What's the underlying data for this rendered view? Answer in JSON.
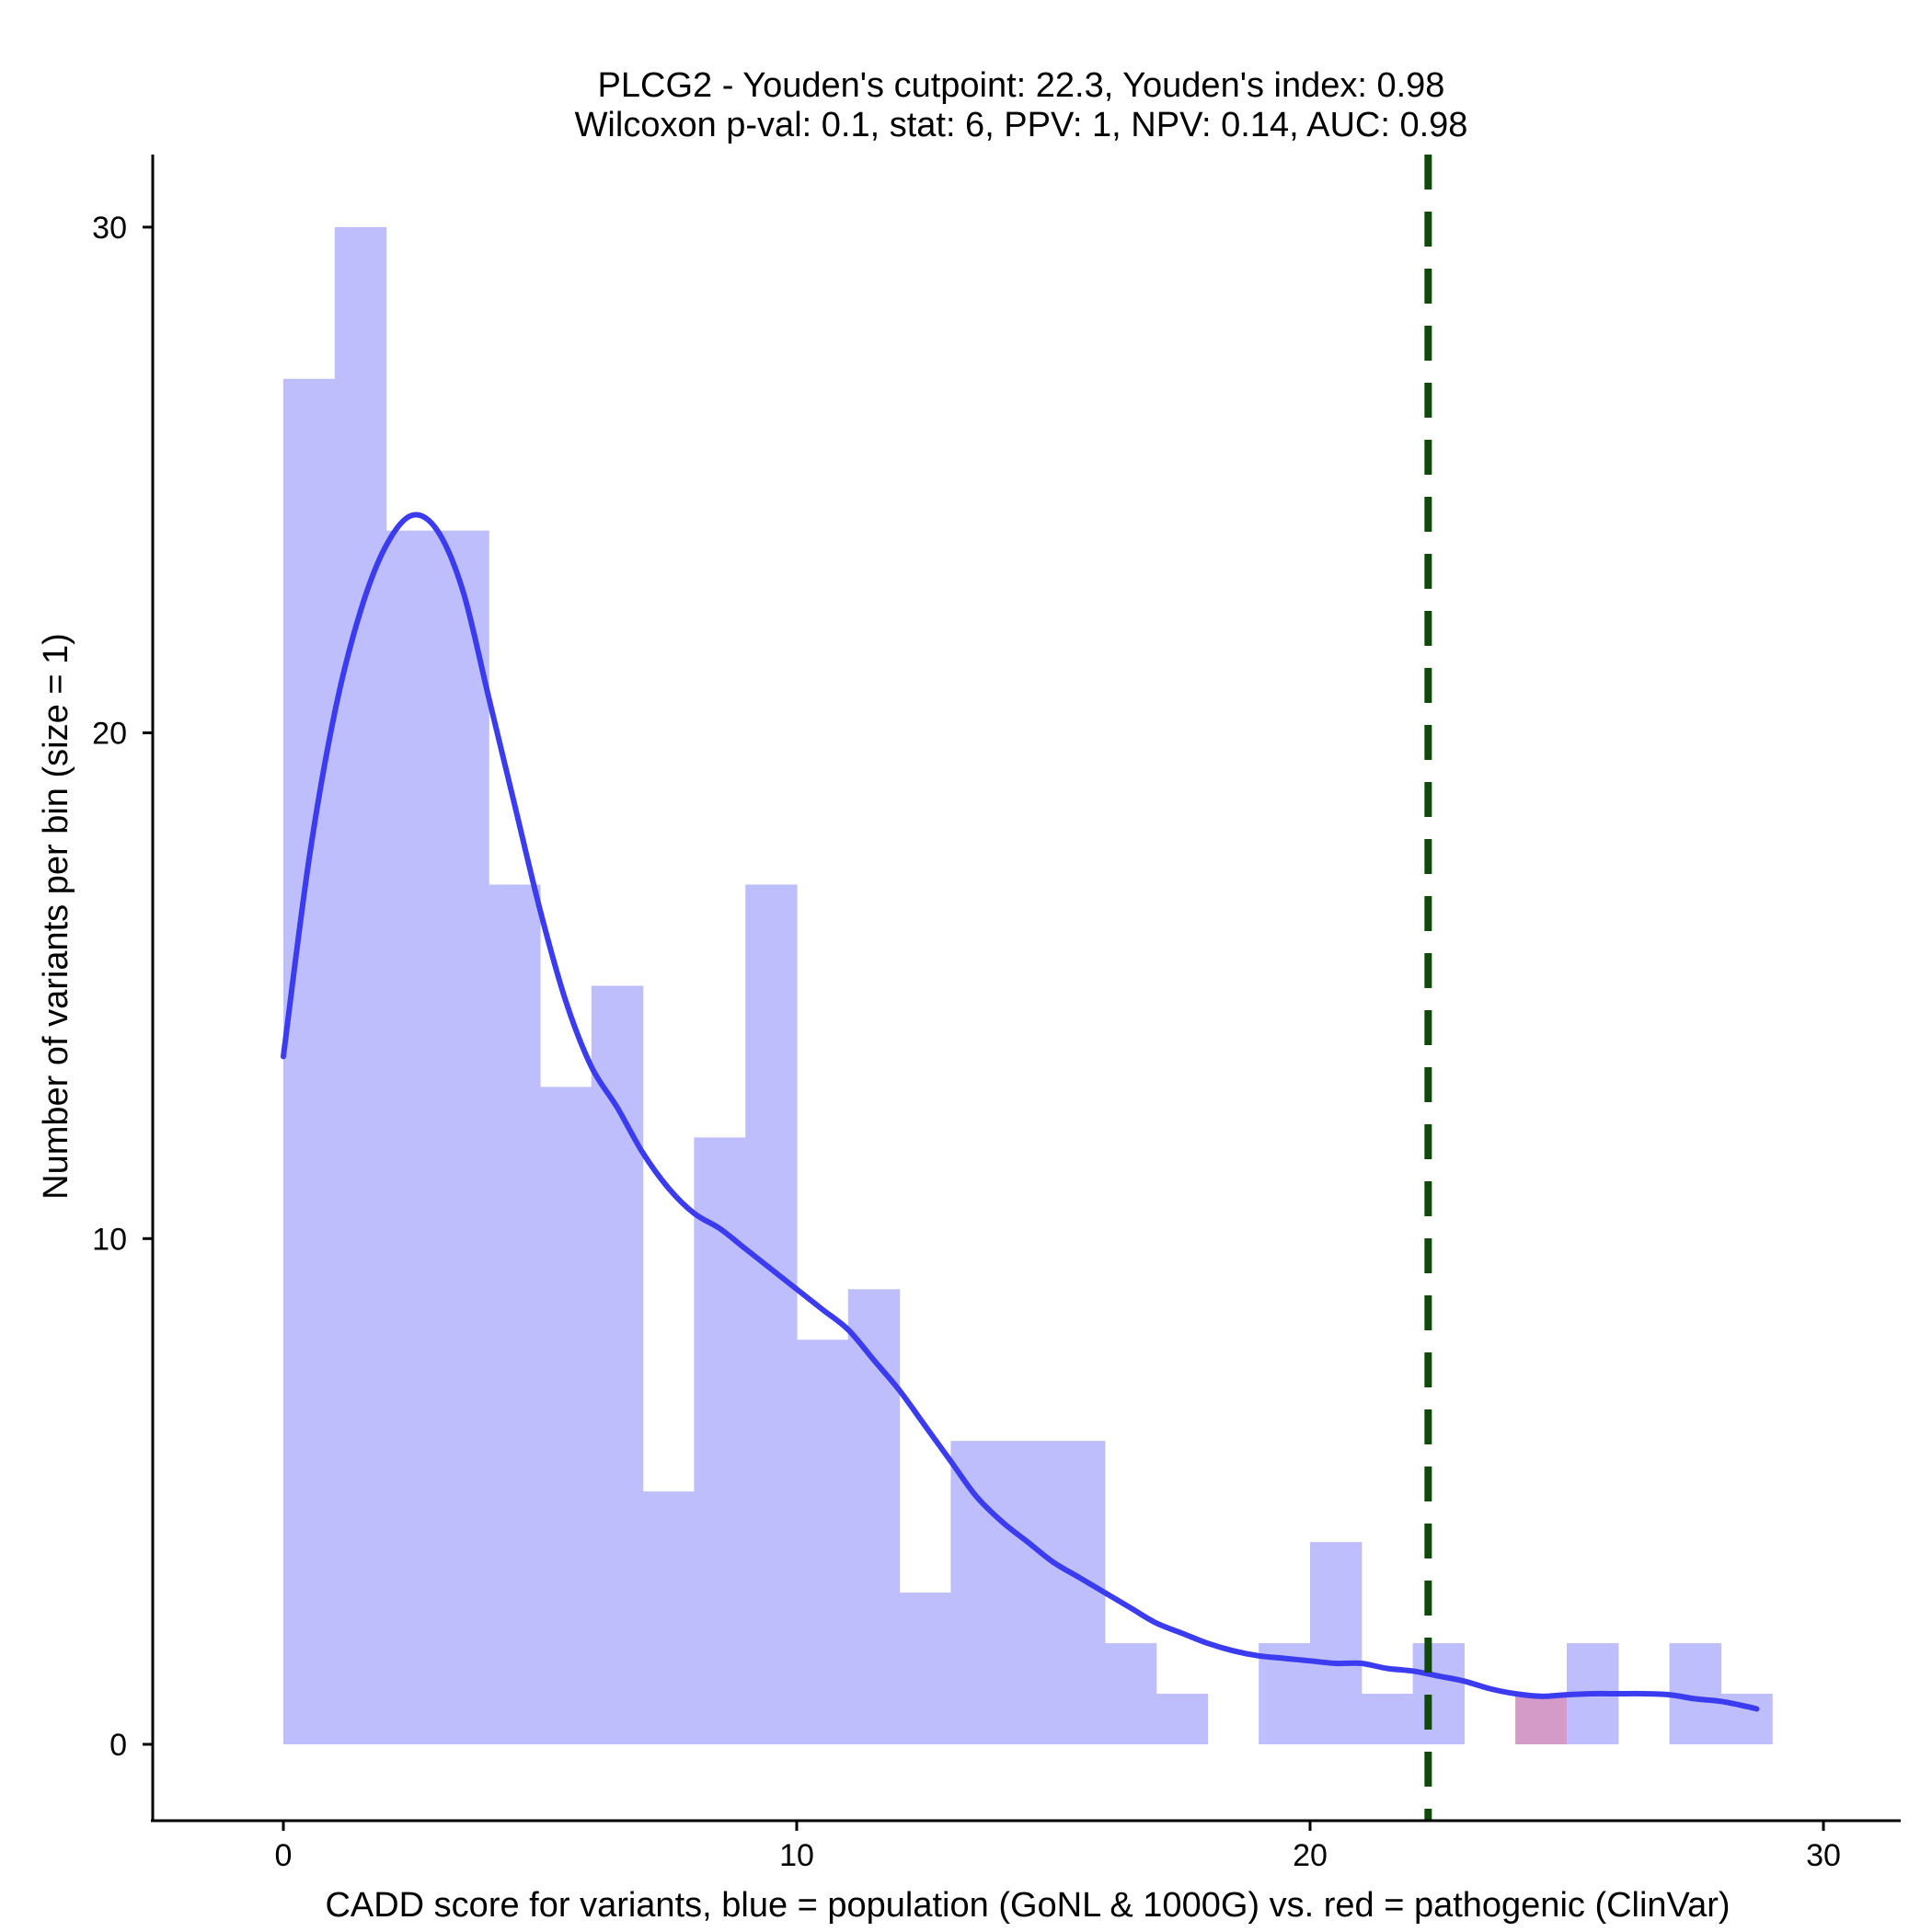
{
  "chart_data": {
    "type": "bar",
    "title": "PLCG2 - Youden's cutpoint: 22.3, Youden's index: 0.98",
    "subtitle": "Wilcoxon p-val: 0.1, stat: 6, PPV: 1, NPV: 0.14, AUC: 0.98",
    "xlabel": "CADD score for variants, blue = population (GoNL & 1000G) vs. red = pathogenic (ClinVar)",
    "ylabel": "Number of variants per bin (size = 1)",
    "xlim": [
      -2.5,
      31.5
    ],
    "ylim": [
      -1.5,
      31.5
    ],
    "xticks": [
      0,
      10,
      20,
      30
    ],
    "yticks": [
      0,
      10,
      20,
      30
    ],
    "grid": false,
    "cutpoint": 22.3,
    "colors": {
      "population": "#bebefc",
      "pathogenic": "#d49ac8",
      "density": "#3b3bef",
      "cutpoint": "#0f4a0a"
    },
    "series": [
      {
        "name": "population",
        "bins": [
          {
            "x0": 0,
            "x1": 1,
            "count": 27
          },
          {
            "x0": 1,
            "x1": 2,
            "count": 30
          },
          {
            "x0": 2,
            "x1": 3,
            "count": 24
          },
          {
            "x0": 3,
            "x1": 4,
            "count": 24
          },
          {
            "x0": 4,
            "x1": 5,
            "count": 17
          },
          {
            "x0": 5,
            "x1": 6,
            "count": 13
          },
          {
            "x0": 6,
            "x1": 7,
            "count": 15
          },
          {
            "x0": 7,
            "x1": 8,
            "count": 5
          },
          {
            "x0": 8,
            "x1": 9,
            "count": 12
          },
          {
            "x0": 9,
            "x1": 10,
            "count": 17
          },
          {
            "x0": 10,
            "x1": 11,
            "count": 8
          },
          {
            "x0": 11,
            "x1": 12,
            "count": 9
          },
          {
            "x0": 12,
            "x1": 13,
            "count": 3
          },
          {
            "x0": 13,
            "x1": 14,
            "count": 6
          },
          {
            "x0": 14,
            "x1": 15,
            "count": 6
          },
          {
            "x0": 15,
            "x1": 16,
            "count": 6
          },
          {
            "x0": 16,
            "x1": 17,
            "count": 2
          },
          {
            "x0": 17,
            "x1": 18,
            "count": 1
          },
          {
            "x0": 18,
            "x1": 19,
            "count": 0
          },
          {
            "x0": 19,
            "x1": 20,
            "count": 2
          },
          {
            "x0": 20,
            "x1": 21,
            "count": 4
          },
          {
            "x0": 21,
            "x1": 22,
            "count": 1
          },
          {
            "x0": 22,
            "x1": 23,
            "count": 2
          },
          {
            "x0": 23,
            "x1": 24,
            "count": 0
          },
          {
            "x0": 24,
            "x1": 25,
            "count": 1
          },
          {
            "x0": 25,
            "x1": 26,
            "count": 2
          },
          {
            "x0": 26,
            "x1": 27,
            "count": 0
          },
          {
            "x0": 27,
            "x1": 28,
            "count": 2
          },
          {
            "x0": 28,
            "x1": 29,
            "count": 1
          }
        ]
      },
      {
        "name": "pathogenic",
        "bins": [
          {
            "x0": 24,
            "x1": 25,
            "count": 1
          }
        ]
      }
    ],
    "density_curve": [
      [
        0,
        13.6
      ],
      [
        0.5,
        17.5
      ],
      [
        1,
        20.4
      ],
      [
        1.5,
        22.4
      ],
      [
        2,
        23.7
      ],
      [
        2.5,
        24.3
      ],
      [
        3,
        24.0
      ],
      [
        3.5,
        22.8
      ],
      [
        4,
        20.7
      ],
      [
        4.5,
        18.6
      ],
      [
        5,
        16.5
      ],
      [
        5.5,
        14.7
      ],
      [
        6,
        13.4
      ],
      [
        6.5,
        12.6
      ],
      [
        7,
        11.7
      ],
      [
        7.5,
        11.0
      ],
      [
        8,
        10.5
      ],
      [
        8.5,
        10.2
      ],
      [
        9,
        9.8
      ],
      [
        9.5,
        9.4
      ],
      [
        10,
        9.0
      ],
      [
        10.5,
        8.6
      ],
      [
        11,
        8.2
      ],
      [
        11.5,
        7.6
      ],
      [
        12,
        7.0
      ],
      [
        12.5,
        6.3
      ],
      [
        13,
        5.6
      ],
      [
        13.5,
        4.9
      ],
      [
        14,
        4.4
      ],
      [
        14.5,
        4.0
      ],
      [
        15,
        3.6
      ],
      [
        15.5,
        3.3
      ],
      [
        16,
        3.0
      ],
      [
        16.5,
        2.7
      ],
      [
        17,
        2.4
      ],
      [
        17.5,
        2.2
      ],
      [
        18,
        2.0
      ],
      [
        18.5,
        1.85
      ],
      [
        19,
        1.75
      ],
      [
        19.5,
        1.7
      ],
      [
        20,
        1.65
      ],
      [
        20.5,
        1.6
      ],
      [
        21,
        1.6
      ],
      [
        21.5,
        1.5
      ],
      [
        22,
        1.45
      ],
      [
        22.5,
        1.35
      ],
      [
        23,
        1.25
      ],
      [
        23.5,
        1.1
      ],
      [
        24,
        1.0
      ],
      [
        24.5,
        0.95
      ],
      [
        25,
        0.98
      ],
      [
        25.5,
        1.0
      ],
      [
        26,
        1.0
      ],
      [
        26.5,
        1.0
      ],
      [
        27,
        0.98
      ],
      [
        27.5,
        0.9
      ],
      [
        28,
        0.85
      ],
      [
        28.5,
        0.75
      ],
      [
        28.7,
        0.7
      ]
    ]
  }
}
